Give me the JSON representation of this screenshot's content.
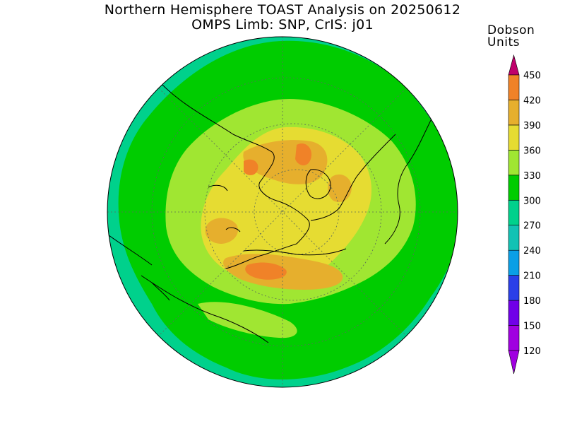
{
  "title": {
    "line1": "Northern Hemisphere TOAST Analysis on 20250612",
    "line2": "OMPS Limb: SNP, CrIS: j01"
  },
  "colorbar": {
    "title_line1": "Dobson",
    "title_line2": "Units",
    "levels": [
      {
        "label": "120",
        "color": "#a000e0"
      },
      {
        "label": "150",
        "color": "#7000e8"
      },
      {
        "label": "180",
        "color": "#2a3fe8"
      },
      {
        "label": "210",
        "color": "#0a9fe6"
      },
      {
        "label": "240",
        "color": "#12c2b4"
      },
      {
        "label": "270",
        "color": "#00d18c"
      },
      {
        "label": "300",
        "color": "#00cc00"
      },
      {
        "label": "330",
        "color": "#a0e632"
      },
      {
        "label": "360",
        "color": "#e6dc32"
      },
      {
        "label": "390",
        "color": "#e6af2d"
      },
      {
        "label": "420",
        "color": "#f08228"
      },
      {
        "label": "450",
        "color": "#f00000"
      }
    ],
    "min_cap_color": "#a000e0",
    "max_cap_color": "#c0006c"
  },
  "map": {
    "projection": "north-polar-stereographic",
    "background_color": "#00d18c",
    "grid": true
  }
}
